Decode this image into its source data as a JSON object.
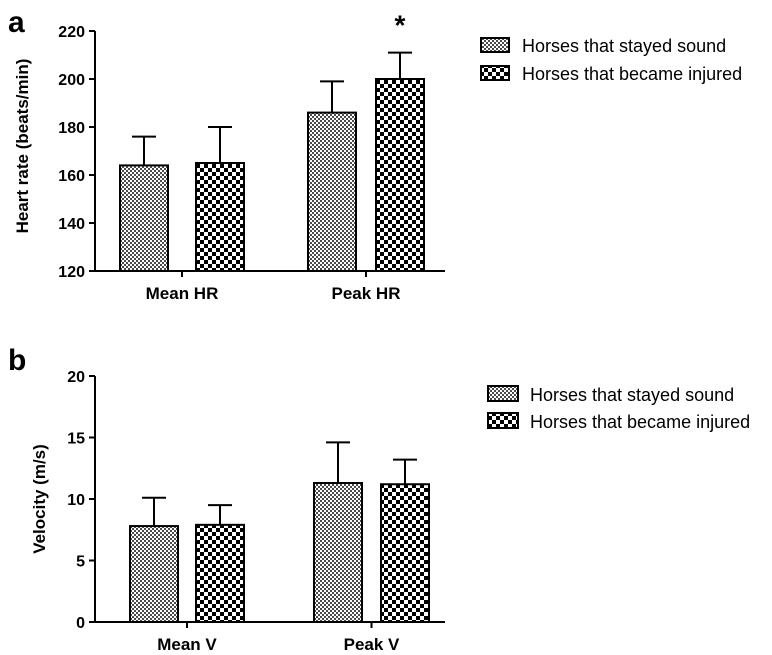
{
  "chart_data": [
    {
      "panel_label": "a",
      "type": "bar",
      "categories": [
        "Mean HR",
        "Peak HR"
      ],
      "series": [
        {
          "name": "Horses that stayed sound",
          "values": [
            164,
            186
          ],
          "errors": [
            12,
            13
          ],
          "pattern": "fine-checker"
        },
        {
          "name": "Horses that became injured",
          "values": [
            165,
            200
          ],
          "errors": [
            15,
            11
          ],
          "pattern": "coarse-checker"
        }
      ],
      "ylabel": "Heart rate (beats/min)",
      "xlabel": "",
      "ylim": [
        120,
        220
      ],
      "yticks": [
        120,
        140,
        160,
        180,
        200,
        220
      ],
      "ytick_labels": [
        "120",
        "140",
        "160",
        "180",
        "200",
        "220"
      ],
      "annotations": [
        {
          "text": "*",
          "category": "Peak HR",
          "series": "Horses that became injured"
        }
      ],
      "legend_position": "top-right",
      "grid": false
    },
    {
      "panel_label": "b",
      "type": "bar",
      "categories": [
        "Mean V",
        "Peak V"
      ],
      "series": [
        {
          "name": "Horses that stayed sound",
          "values": [
            7.8,
            11.3
          ],
          "errors": [
            2.3,
            3.3
          ],
          "pattern": "fine-checker"
        },
        {
          "name": "Horses that became injured",
          "values": [
            7.9,
            11.2
          ],
          "errors": [
            1.6,
            2.0
          ],
          "pattern": "coarse-checker"
        }
      ],
      "ylabel": "Velocity (m/s)",
      "xlabel": "",
      "ylim": [
        0,
        20
      ],
      "yticks": [
        0,
        5,
        10,
        15,
        20
      ],
      "ytick_labels": [
        "0",
        "5",
        "10",
        "15",
        "20"
      ],
      "annotations": [],
      "legend_position": "top-right",
      "grid": false
    }
  ]
}
